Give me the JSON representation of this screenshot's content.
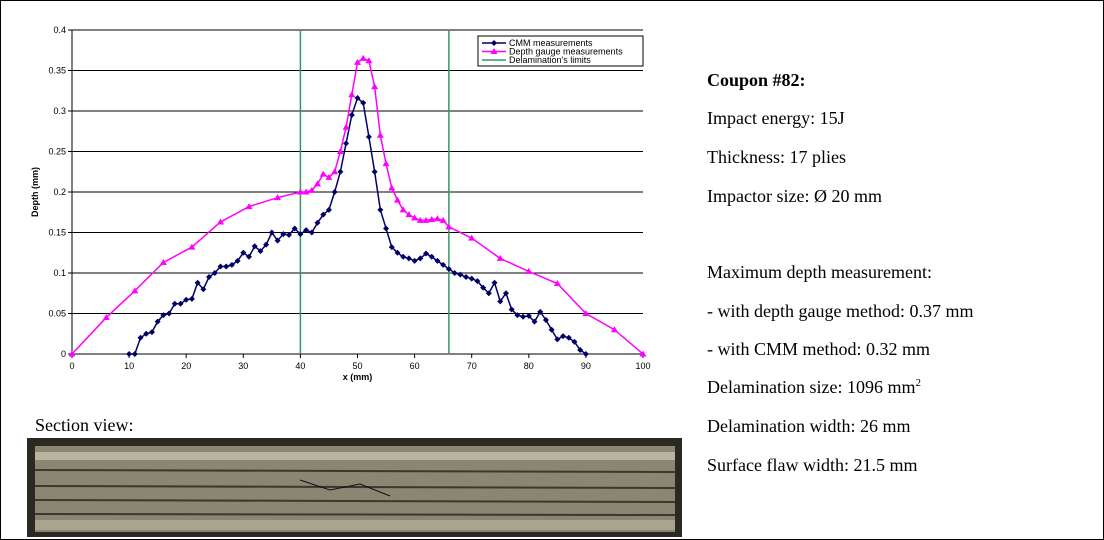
{
  "chart_data": {
    "type": "line",
    "xlabel": "x (mm)",
    "ylabel": "Depth (mm)",
    "xlim": [
      0,
      100
    ],
    "xticks": [
      0,
      10,
      20,
      30,
      40,
      50,
      60,
      70,
      80,
      90,
      100
    ],
    "ylim": [
      0,
      0.4
    ],
    "yticks": [
      0,
      0.05,
      0.1,
      0.15,
      0.2,
      0.25,
      0.3,
      0.35,
      0.4
    ],
    "grid": true,
    "legend": "upper right",
    "series": [
      {
        "name": "CMM measurements",
        "color": "#000066",
        "marker": "diamond",
        "x": [
          10,
          11,
          12,
          13,
          14,
          15,
          16,
          17,
          18,
          19,
          20,
          21,
          22,
          23,
          24,
          25,
          26,
          27,
          28,
          29,
          30,
          31,
          32,
          33,
          34,
          35,
          36,
          37,
          38,
          39,
          40,
          41,
          42,
          43,
          44,
          45,
          46,
          47,
          48,
          49,
          50,
          51,
          52,
          53,
          54,
          55,
          56,
          57,
          58,
          59,
          60,
          61,
          62,
          63,
          64,
          65,
          66,
          67,
          68,
          69,
          70,
          71,
          72,
          73,
          74,
          75,
          76,
          77,
          78,
          79,
          80,
          81,
          82,
          83,
          84,
          85,
          86,
          87,
          88,
          89,
          90
        ],
        "values": [
          0,
          0,
          0.02,
          0.025,
          0.027,
          0.04,
          0.048,
          0.05,
          0.062,
          0.062,
          0.067,
          0.068,
          0.088,
          0.08,
          0.095,
          0.1,
          0.108,
          0.108,
          0.11,
          0.115,
          0.125,
          0.12,
          0.133,
          0.127,
          0.135,
          0.15,
          0.14,
          0.148,
          0.147,
          0.155,
          0.148,
          0.153,
          0.15,
          0.162,
          0.172,
          0.178,
          0.2,
          0.225,
          0.26,
          0.295,
          0.316,
          0.31,
          0.268,
          0.225,
          0.178,
          0.155,
          0.132,
          0.125,
          0.12,
          0.118,
          0.115,
          0.118,
          0.124,
          0.12,
          0.115,
          0.11,
          0.105,
          0.1,
          0.098,
          0.095,
          0.093,
          0.09,
          0.082,
          0.075,
          0.088,
          0.065,
          0.075,
          0.055,
          0.048,
          0.046,
          0.047,
          0.04,
          0.052,
          0.042,
          0.03,
          0.018,
          0.022,
          0.02,
          0.015,
          0.005,
          0
        ]
      },
      {
        "name": "Depth gauge measurements",
        "color": "#ff00ff",
        "marker": "triangle",
        "x": [
          0,
          6,
          11,
          16,
          21,
          26,
          31,
          36,
          40,
          41,
          42,
          43,
          44,
          45,
          46,
          47,
          48,
          49,
          50,
          51,
          52,
          53,
          54,
          55,
          56,
          57,
          58,
          59,
          60,
          61,
          62,
          63,
          64,
          65,
          66,
          70,
          75,
          80,
          85,
          90,
          95,
          100
        ],
        "values": [
          0,
          0.045,
          0.078,
          0.113,
          0.132,
          0.163,
          0.182,
          0.193,
          0.2,
          0.2,
          0.202,
          0.21,
          0.222,
          0.218,
          0.225,
          0.25,
          0.28,
          0.32,
          0.36,
          0.365,
          0.362,
          0.33,
          0.27,
          0.235,
          0.205,
          0.19,
          0.178,
          0.172,
          0.168,
          0.165,
          0.165,
          0.166,
          0.167,
          0.165,
          0.157,
          0.143,
          0.118,
          0.102,
          0.087,
          0.05,
          0.03,
          0
        ]
      }
    ],
    "limits": {
      "name": "Delamination's limits",
      "color": "#339966",
      "x": [
        40,
        66
      ]
    }
  },
  "section": {
    "label": "Section view:"
  },
  "panel": {
    "title": "Coupon #82:",
    "lines": [
      "Impact energy: 15J",
      "Thickness: 17 plies",
      "Impactor size: Ø 20 mm",
      "Maximum depth measurement:",
      "- with depth gauge method: 0.37 mm",
      "- with CMM method: 0.32 mm"
    ],
    "delamination_size": {
      "text": "Delamination size: 1096 mm",
      "sup": "2"
    },
    "tail": [
      "Delamination width: 26 mm",
      "Surface flaw width: 21.5 mm"
    ]
  }
}
